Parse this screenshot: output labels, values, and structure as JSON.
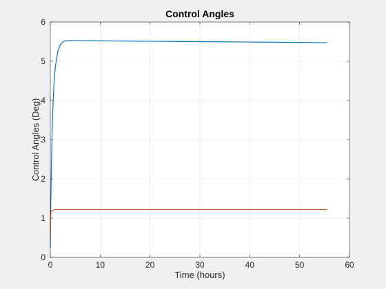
{
  "chart_data": {
    "type": "line",
    "title": "Control Angles",
    "xlabel": "Time (hours)",
    "ylabel": "Control Angles (Deg)",
    "xlim": [
      0,
      60
    ],
    "ylim": [
      0,
      6
    ],
    "xticks": [
      0,
      10,
      20,
      30,
      40,
      50,
      60
    ],
    "yticks": [
      0,
      1,
      2,
      3,
      4,
      5,
      6
    ],
    "grid": true,
    "series": [
      {
        "color": "#0072BD",
        "x": [
          0,
          0.05,
          0.1,
          0.2,
          0.3,
          0.5,
          0.75,
          1.0,
          1.5,
          2.0,
          2.5,
          3.0,
          4.0,
          5.0,
          10,
          20,
          30,
          40,
          50,
          55.5
        ],
        "y": [
          0.25,
          0.9,
          1.4,
          2.2,
          2.85,
          3.75,
          4.45,
          4.85,
          5.25,
          5.42,
          5.49,
          5.52,
          5.53,
          5.53,
          5.52,
          5.51,
          5.5,
          5.49,
          5.48,
          5.47
        ]
      },
      {
        "color": "#D95319",
        "x": [
          0,
          0.05,
          0.1,
          0.2,
          0.4,
          0.7,
          1.0,
          1.5,
          2.0,
          3.0,
          5,
          10,
          20,
          30,
          40,
          50,
          55.5
        ],
        "y": [
          0.55,
          0.95,
          1.1,
          1.17,
          1.2,
          1.21,
          1.22,
          1.22,
          1.22,
          1.22,
          1.22,
          1.22,
          1.22,
          1.22,
          1.22,
          1.22,
          1.22
        ]
      }
    ]
  }
}
